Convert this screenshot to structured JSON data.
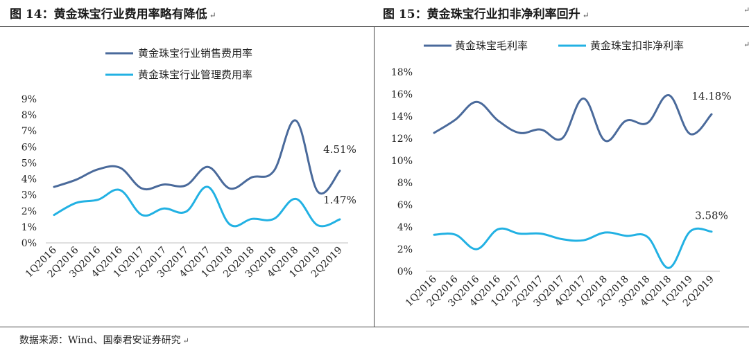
{
  "colors": {
    "dark": "#4a6a9b",
    "light": "#22b1e3"
  },
  "source_text": "数据来源：Wind、国泰君安证券研究",
  "chart_data": [
    {
      "type": "line",
      "title": "图 14：黄金珠宝行业费用率略有降低",
      "categories": [
        "1Q2016",
        "2Q2016",
        "3Q2016",
        "4Q2016",
        "1Q2017",
        "2Q2017",
        "3Q2017",
        "4Q2017",
        "1Q2018",
        "2Q2018",
        "3Q2018",
        "4Q2018",
        "1Q2019",
        "2Q2019"
      ],
      "yticks": [
        "0%",
        "1%",
        "2%",
        "3%",
        "4%",
        "5%",
        "6%",
        "7%",
        "8%",
        "9%"
      ],
      "ylim": [
        0,
        9
      ],
      "legend_position": "top",
      "grid": false,
      "series": [
        {
          "name": "黄金珠宝行业销售费用率",
          "color": "#4a6a9b",
          "values": [
            3.5,
            3.95,
            4.6,
            4.7,
            3.4,
            3.65,
            3.6,
            4.75,
            3.4,
            4.1,
            4.5,
            7.65,
            3.2,
            4.51
          ]
        },
        {
          "name": "黄金珠宝行业管理费用率",
          "color": "#22b1e3",
          "values": [
            1.75,
            2.5,
            2.7,
            3.3,
            1.75,
            2.15,
            1.95,
            3.5,
            1.15,
            1.5,
            1.5,
            2.75,
            1.1,
            1.47
          ]
        }
      ],
      "data_labels": [
        {
          "text": "4.51%",
          "series": 0,
          "index": 13
        },
        {
          "text": "1.47%",
          "series": 1,
          "index": 13
        }
      ]
    },
    {
      "type": "line",
      "title": "图 15：黄金珠宝行业扣非净利率回升",
      "categories": [
        "1Q2016",
        "2Q2016",
        "3Q2016",
        "4Q2016",
        "1Q2017",
        "2Q2017",
        "3Q2017",
        "4Q2017",
        "1Q2018",
        "2Q2018",
        "3Q2018",
        "4Q2018",
        "1Q2019",
        "2Q2019"
      ],
      "yticks": [
        "0%",
        "2%",
        "4%",
        "6%",
        "8%",
        "10%",
        "12%",
        "14%",
        "16%",
        "18%"
      ],
      "ylim": [
        0,
        18
      ],
      "legend_position": "top",
      "grid": false,
      "series": [
        {
          "name": "黄金珠宝毛利率",
          "color": "#4a6a9b",
          "values": [
            12.5,
            13.7,
            15.3,
            13.6,
            12.5,
            12.8,
            12.0,
            15.6,
            11.8,
            13.6,
            13.4,
            15.9,
            12.4,
            14.18
          ]
        },
        {
          "name": "黄金珠宝扣非净利率",
          "color": "#22b1e3",
          "values": [
            3.3,
            3.3,
            2.0,
            3.8,
            3.4,
            3.4,
            2.9,
            2.8,
            3.5,
            3.2,
            3.1,
            0.3,
            3.6,
            3.58
          ]
        }
      ],
      "data_labels": [
        {
          "text": "14.18%",
          "series": 0,
          "index": 13
        },
        {
          "text": "3.58%",
          "series": 1,
          "index": 13
        }
      ]
    }
  ]
}
